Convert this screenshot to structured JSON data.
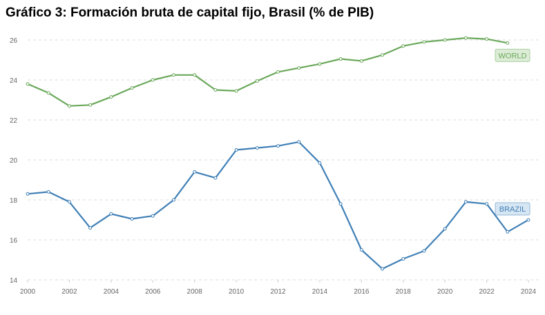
{
  "title": "Gráfico 3: Formación bruta de capital fijo, Brasil (% de PIB)",
  "chart_data": {
    "type": "line",
    "title": "Gráfico 3: Formación bruta de capital fijo, Brasil (% de PIB)",
    "xlabel": "",
    "ylabel": "",
    "xlim": [
      2000,
      2024
    ],
    "ylim": [
      14,
      26
    ],
    "grid": true,
    "x_ticks": [
      "2000",
      "2002",
      "2004",
      "2006",
      "2008",
      "2010",
      "2012",
      "2014",
      "2016",
      "2018",
      "2020",
      "2022",
      "2024"
    ],
    "y_ticks": [
      "14",
      "16",
      "18",
      "20",
      "22",
      "24",
      "26"
    ],
    "series": [
      {
        "name": "WORLD",
        "color": "#6aa85a",
        "label_bg": "#dcecd6",
        "label_text": "#6aa85a",
        "x": [
          2000,
          2001,
          2002,
          2003,
          2004,
          2005,
          2006,
          2007,
          2008,
          2009,
          2010,
          2011,
          2012,
          2013,
          2014,
          2015,
          2016,
          2017,
          2018,
          2019,
          2020,
          2021,
          2022,
          2023
        ],
        "values": [
          23.8,
          23.35,
          22.7,
          22.75,
          23.15,
          23.6,
          24.0,
          24.25,
          24.25,
          23.5,
          23.45,
          23.95,
          24.4,
          24.6,
          24.8,
          25.05,
          24.95,
          25.25,
          25.7,
          25.9,
          26.0,
          26.1,
          26.05,
          25.85
        ]
      },
      {
        "name": "BRAZIL",
        "color": "#3f7fb6",
        "label_bg": "#d7e6f3",
        "label_text": "#3f7fb6",
        "x": [
          2000,
          2001,
          2002,
          2003,
          2004,
          2005,
          2006,
          2007,
          2008,
          2009,
          2010,
          2011,
          2012,
          2013,
          2014,
          2015,
          2016,
          2017,
          2018,
          2019,
          2020,
          2021,
          2022,
          2023,
          2024
        ],
        "values": [
          18.3,
          18.4,
          17.9,
          16.6,
          17.3,
          17.05,
          17.2,
          18.0,
          19.4,
          19.1,
          20.5,
          20.6,
          20.7,
          20.9,
          19.85,
          17.8,
          15.5,
          14.55,
          15.05,
          15.45,
          16.55,
          17.9,
          17.8,
          16.4,
          17.0
        ]
      }
    ]
  }
}
